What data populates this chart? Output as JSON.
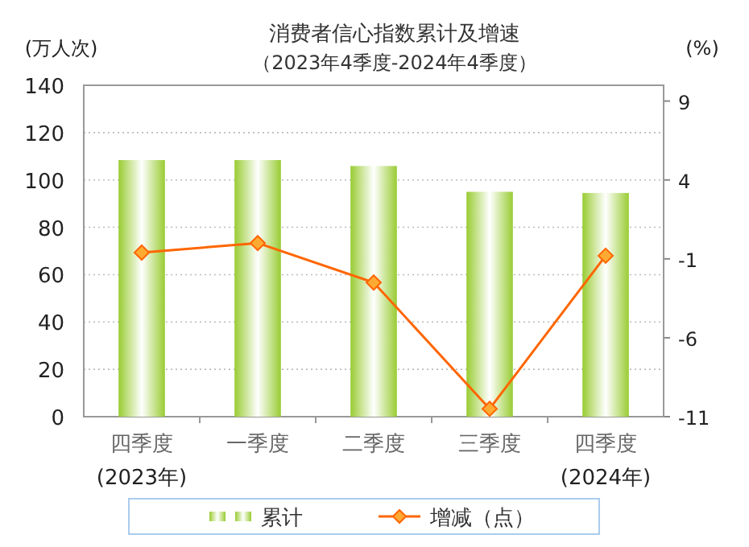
{
  "chart_data": {
    "type": "bar",
    "title": "消费者信心指数累计及增速",
    "subtitle": "（2023年4季度-2024年4季度）",
    "ylabel": "(万人次)",
    "y2label": "(%)",
    "categories": [
      "四季度",
      "一季度",
      "二季度",
      "三季度",
      "四季度"
    ],
    "series": [
      {
        "name": "累计",
        "color": "#99cc33",
        "values": [
          108.4,
          108.4,
          105.9,
          95.0,
          94.5
        ]
      },
      {
        "name": "增减（点）",
        "type": "line",
        "axis": "y2",
        "color": "#ff6600",
        "marker": "diamond",
        "values": [
          -0.6,
          0.0,
          -2.5,
          -10.5,
          -0.8
        ]
      }
    ],
    "ylim": [
      0,
      140
    ],
    "yticks": [
      0,
      20,
      40,
      60,
      80,
      100,
      120,
      140
    ],
    "y2lim": [
      -11,
      10
    ],
    "y2ticks": [
      -11,
      -6,
      -1,
      4,
      9
    ],
    "annotations": [
      "(2023年)",
      "(2024年)"
    ],
    "grid": "y",
    "legend": "bottom"
  }
}
